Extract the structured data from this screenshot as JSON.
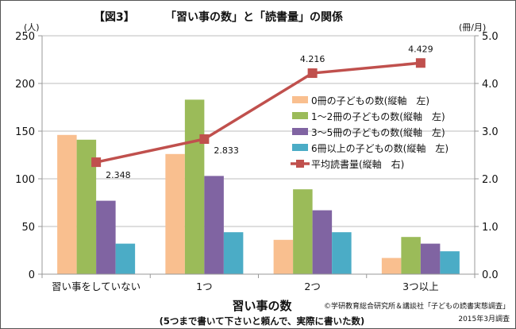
{
  "chart_data": {
    "type": "bar",
    "figure_label": "【図3】",
    "title": "「習い事の数」と「読書量」の関係",
    "xlabel": "習い事の数",
    "xlabel_note": "(5つまで書いて下さいと頼んで、実際に書いた数)",
    "ylabel_left": "(人)",
    "ylabel_right": "(冊/月)",
    "ylim_left": [
      0,
      250
    ],
    "ylim_right": [
      0,
      5.0
    ],
    "yticks_left": [
      "0",
      "50",
      "100",
      "150",
      "200",
      "250"
    ],
    "yticks_right": [
      "0.0",
      "1.0",
      "2.0",
      "3.0",
      "4.0",
      "5.0"
    ],
    "categories": [
      "習い事をしていない",
      "1つ",
      "2つ",
      "3つ以上"
    ],
    "grid": true,
    "legend_position": "right-center",
    "series": [
      {
        "name": "0冊の子どもの数(縦軸　左)",
        "axis": "left",
        "kind": "bar",
        "color": "#F9BF8F",
        "values": [
          146,
          126,
          36,
          17
        ]
      },
      {
        "name": "1～2冊の子どもの数(縦軸　左)",
        "axis": "left",
        "kind": "bar",
        "color": "#9BBB59",
        "values": [
          141,
          183,
          89,
          39
        ]
      },
      {
        "name": "3～5冊の子どもの数(縦軸　左)",
        "axis": "left",
        "kind": "bar",
        "color": "#8064A2",
        "values": [
          77,
          103,
          67,
          32
        ]
      },
      {
        "name": "6冊以上の子どもの数(縦軸　左)",
        "axis": "left",
        "kind": "bar",
        "color": "#4BACC6",
        "values": [
          32,
          44,
          44,
          24
        ]
      },
      {
        "name": "平均読書量(縦軸　右)",
        "axis": "right",
        "kind": "line",
        "color": "#C0504D",
        "values": [
          2.348,
          2.833,
          4.216,
          4.429
        ],
        "labels": [
          "2.348",
          "2.833",
          "4.216",
          "4.429"
        ]
      }
    ],
    "source": "©学研教育総合研究所＆講談社「子どもの読書実態調査」",
    "date": "2015年3月調査"
  }
}
